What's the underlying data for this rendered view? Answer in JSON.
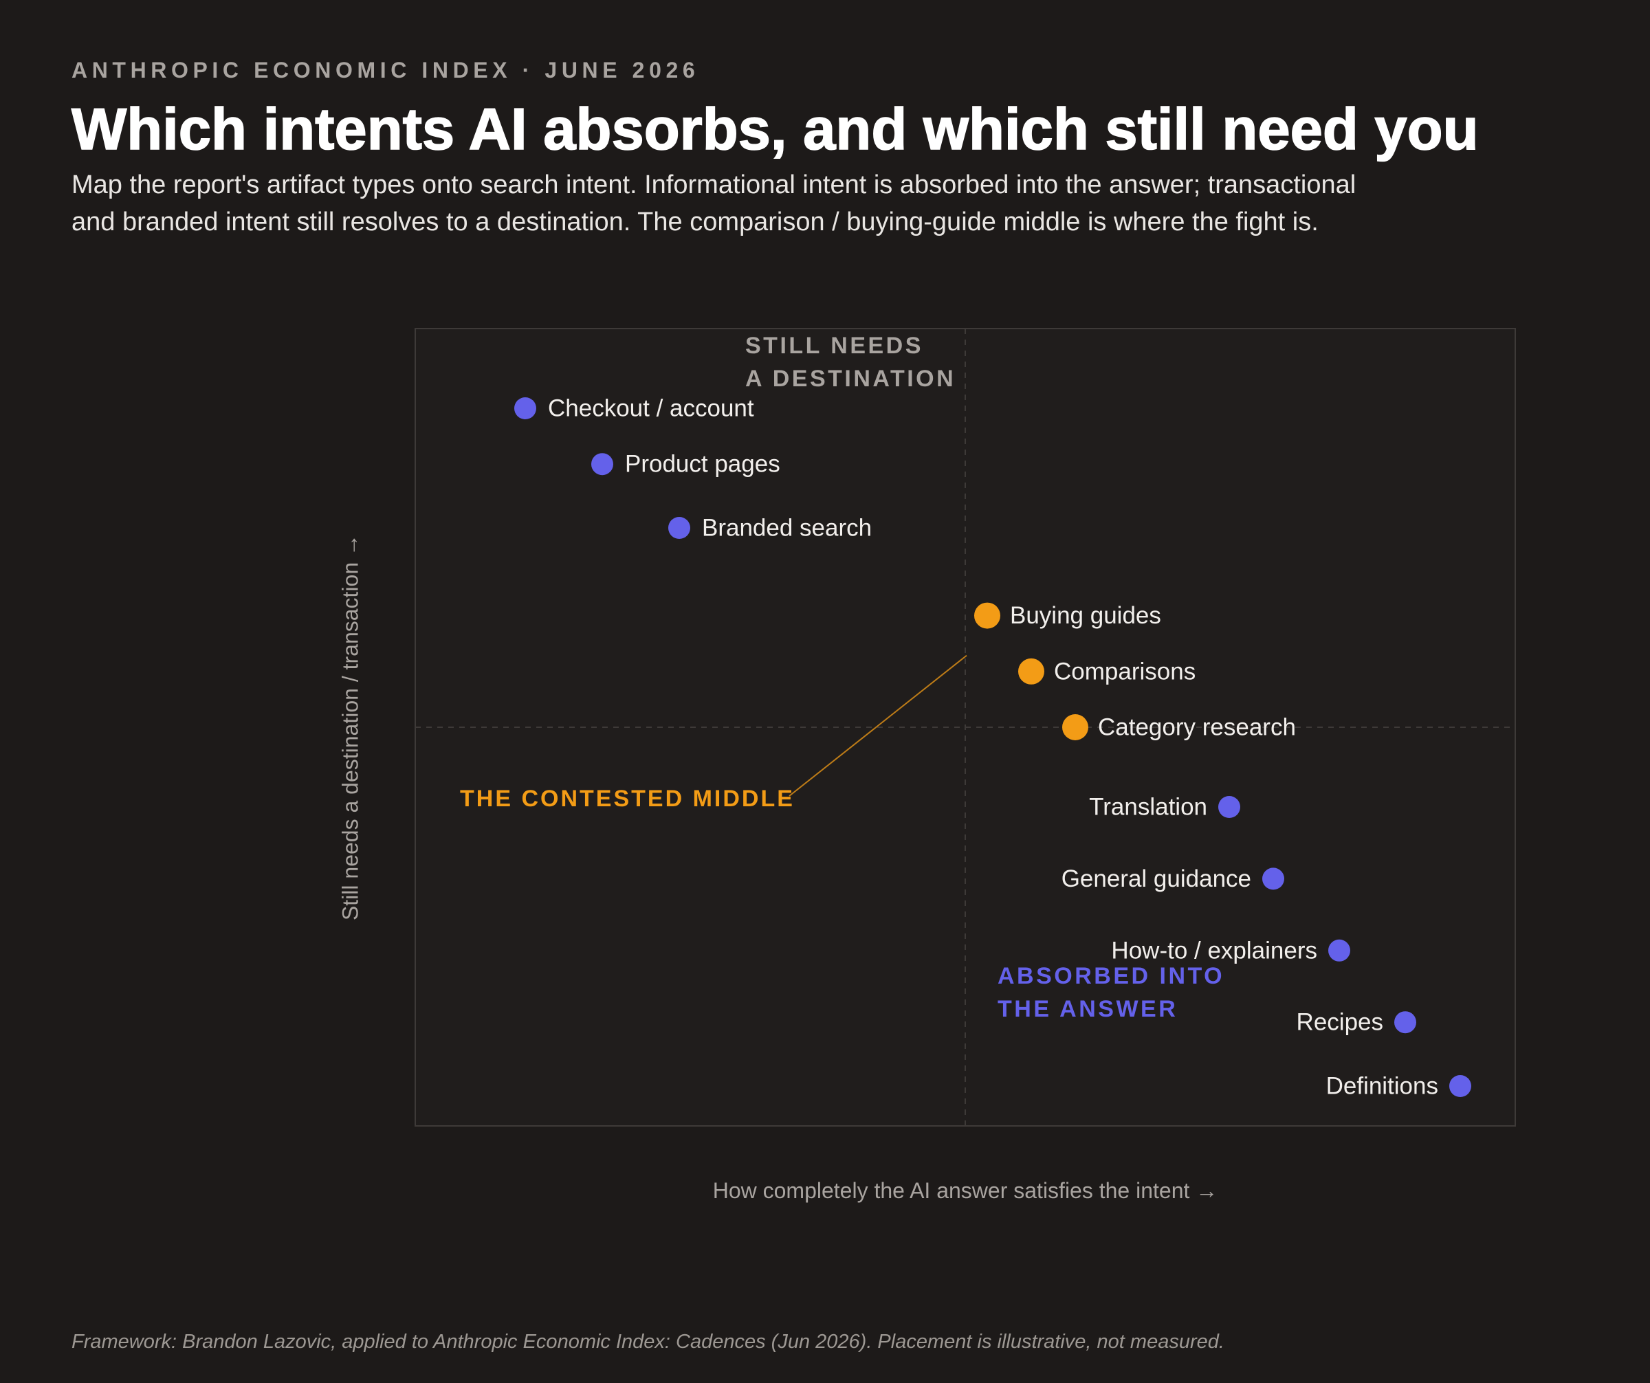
{
  "header": {
    "eyebrow": "ANTHROPIC ECONOMIC INDEX · JUNE 2026",
    "title": "Which intents AI absorbs, and which still need you",
    "subtitle": "Map the report's artifact types onto search intent. Informational intent is absorbed into the answer; transactional and branded intent still resolves to a destination. The comparison / buying-guide middle is where the fight is."
  },
  "footnote": "Framework: Brandon Lazovic, applied to Anthropic Economic Index: Cadences (Jun 2026). Placement is illustrative, not measured.",
  "colors": {
    "background": "#1d1a19",
    "plot_background": "#201d1c",
    "absorbed": "#6461ea",
    "contested": "#f39c16",
    "destination_label": "#a9a4a0",
    "grid": "#3e3a38"
  },
  "chart_data": {
    "type": "scatter",
    "xlabel": "How completely the AI answer satisfies the intent →",
    "ylabel": "Still needs a destination / transaction →",
    "xlim": [
      0,
      100
    ],
    "ylim": [
      0,
      100
    ],
    "divider_x": 50,
    "divider_y": 50,
    "ticks_shown": false,
    "quadrant_labels": [
      {
        "key": "destination",
        "lines": [
          "STILL NEEDS",
          "A DESTINATION"
        ],
        "color": "#a9a4a0"
      },
      {
        "key": "absorbed",
        "lines": [
          "ABSORBED INTO",
          "THE ANSWER"
        ],
        "color": "#6461ea"
      }
    ],
    "annotation": {
      "text": "THE CONTESTED MIDDLE",
      "color": "#f39c16",
      "points_to": "Buying guides"
    },
    "points": [
      {
        "label": "Checkout / account",
        "x": 10,
        "y": 90,
        "group": "destination"
      },
      {
        "label": "Product pages",
        "x": 17,
        "y": 83,
        "group": "destination"
      },
      {
        "label": "Branded search",
        "x": 24,
        "y": 75,
        "group": "destination"
      },
      {
        "label": "Buying guides",
        "x": 52,
        "y": 64,
        "group": "contested"
      },
      {
        "label": "Comparisons",
        "x": 56,
        "y": 57,
        "group": "contested"
      },
      {
        "label": "Category research",
        "x": 60,
        "y": 50,
        "group": "contested"
      },
      {
        "label": "Translation",
        "x": 74,
        "y": 40,
        "group": "absorbed"
      },
      {
        "label": "General guidance",
        "x": 78,
        "y": 31,
        "group": "absorbed"
      },
      {
        "label": "How-to / explainers",
        "x": 84,
        "y": 22,
        "group": "absorbed"
      },
      {
        "label": "Recipes",
        "x": 90,
        "y": 13,
        "group": "absorbed"
      },
      {
        "label": "Definitions",
        "x": 95,
        "y": 5,
        "group": "absorbed"
      }
    ]
  }
}
